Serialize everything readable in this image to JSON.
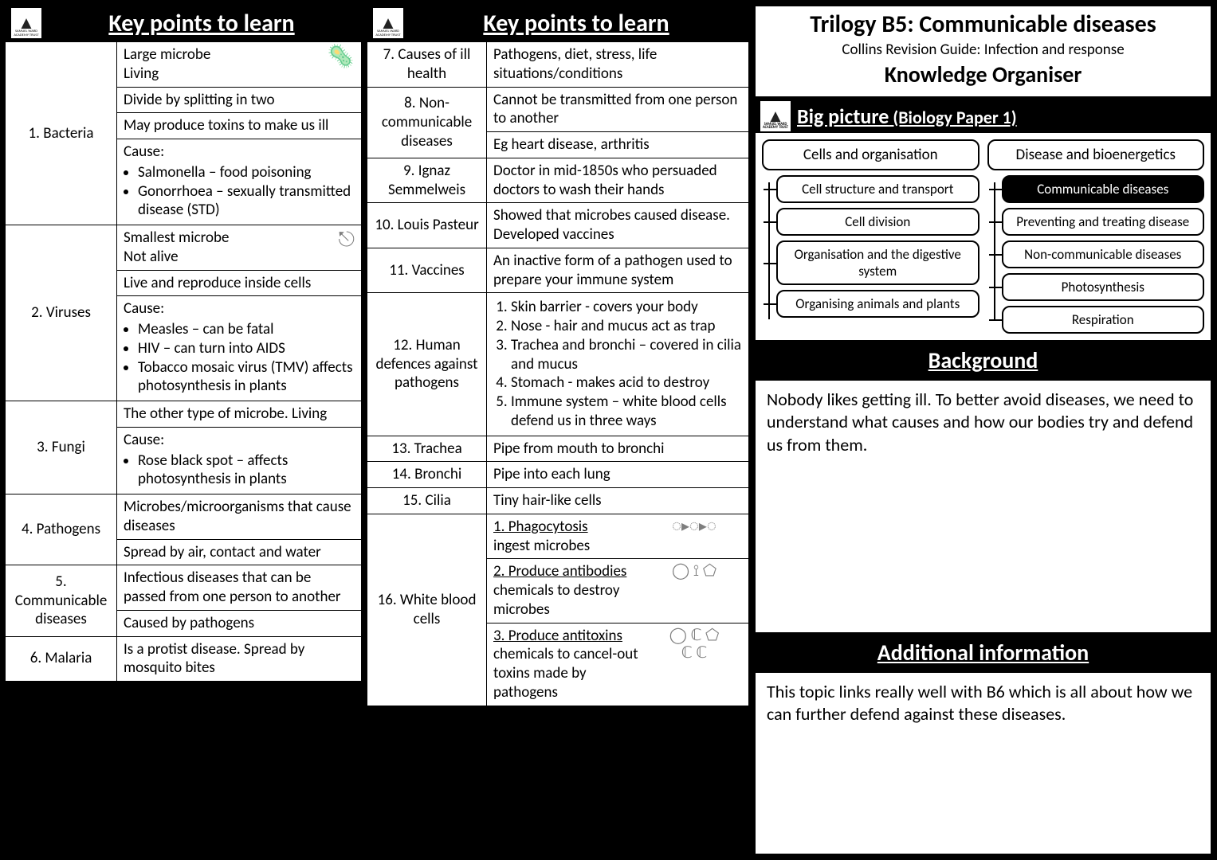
{
  "headers": {
    "kp": "Key points to learn",
    "bigpicture": "Big picture",
    "bigpicture_sub": " (Biology Paper 1)",
    "background": "Background",
    "additional": "Additional information"
  },
  "title": {
    "line1": "Trilogy B5: Communicable diseases",
    "line2": "Collins Revision Guide: Infection and response",
    "line3": "Knowledge Organiser"
  },
  "col1": {
    "r1_term": "1. Bacteria",
    "r1a": "Large microbe\nLiving",
    "r1b": "Divide by splitting in two",
    "r1c": "May produce toxins to make us ill",
    "r1d_head": "Cause:",
    "r1d_b1": "Salmonella – food poisoning",
    "r1d_b2": "Gonorrhoea – sexually transmitted disease (STD)",
    "r2_term": "2. Viruses",
    "r2a": "Smallest microbe\nNot alive",
    "r2b": "Live and reproduce inside cells",
    "r2c_head": "Cause:",
    "r2c_b1": "Measles – can be fatal",
    "r2c_b2": "HIV – can turn into AIDS",
    "r2c_b3": "Tobacco mosaic virus (TMV) affects photosynthesis in plants",
    "r3_term": "3. Fungi",
    "r3a": "The other type of microbe. Living",
    "r3b_head": "Cause:",
    "r3b_b1": "Rose black spot – affects photosynthesis in plants",
    "r4_term": "4. Pathogens",
    "r4a": "Microbes/microorganisms that cause diseases",
    "r4b": "Spread by air, contact and water",
    "r5_term": "5. Communicable diseases",
    "r5a": "Infectious diseases that can be passed from one person to another",
    "r5b": "Caused by pathogens",
    "r6_term": "6. Malaria",
    "r6a": "Is a protist disease. Spread by mosquito bites"
  },
  "col2": {
    "r7_term": "7. Causes of ill health",
    "r7a": "Pathogens, diet, stress, life situations/conditions",
    "r8_term": "8. Non-communicable diseases",
    "r8a": "Cannot be transmitted from one person to another",
    "r8b": "Eg heart disease, arthritis",
    "r9_term": "9. Ignaz Semmelweis",
    "r9a": "Doctor in mid-1850s who persuaded doctors to wash their hands",
    "r10_term": "10. Louis Pasteur",
    "r10a": "Showed that microbes caused disease. Developed vaccines",
    "r11_term": "11. Vaccines",
    "r11a": "An inactive form of a pathogen used to prepare your immune system",
    "r12_term": "12. Human defences against pathogens",
    "r12_1": "Skin barrier - covers your body",
    "r12_2": "Nose - hair and mucus act as trap",
    "r12_3": "Trachea and bronchi – covered in cilia and mucus",
    "r12_4": "Stomach - makes acid to destroy",
    "r12_5": "Immune system – white blood cells defend us in three ways",
    "r13_term": "13. Trachea",
    "r13a": "Pipe from mouth to bronchi",
    "r14_term": "14. Bronchi",
    "r14a": "Pipe into each lung",
    "r15_term": "15. Cilia",
    "r15a": "Tiny hair-like cells",
    "r16_term": "16. White blood cells",
    "r16_1_t": "1. Phagocytosis",
    "r16_1_d": "ingest microbes",
    "r16_2_t": "2. Produce antibodies",
    "r16_2_d": "chemicals to destroy microbes",
    "r16_3_t": "3. Produce antitoxins",
    "r16_3_d": "chemicals to cancel-out toxins made by pathogens"
  },
  "bp": {
    "left_top": "Cells and organisation",
    "left": [
      "Cell structure and transport",
      "Cell division",
      "Organisation and the digestive system",
      "Organising animals and plants"
    ],
    "right_top": "Disease and bioenergetics",
    "right": [
      "Communicable diseases",
      "Preventing and treating disease",
      "Non-communicable diseases",
      "Photosynthesis",
      "Respiration"
    ]
  },
  "background_text": "Nobody likes getting ill. To better avoid diseases, we need to understand what causes and how our bodies try and defend us from them.",
  "additional_text": "This topic links really well with B6 which is all about how we can further defend against these diseases."
}
